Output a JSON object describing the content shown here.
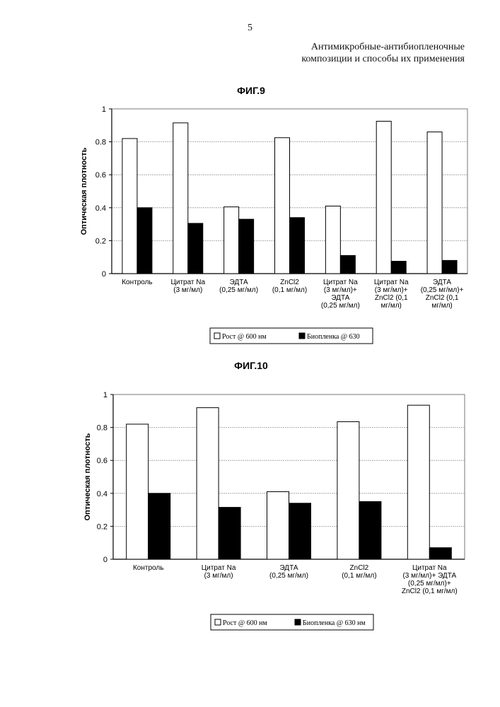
{
  "page": {
    "number": "5",
    "header_line1": "Антимикробные-антибиопленочные",
    "header_line2": "композиции и способы их применения"
  },
  "chart_data": [
    {
      "type": "bar",
      "title": "ФИГ.9",
      "ylabel": "Оптическая плотность",
      "xlabel": "",
      "ylim": [
        0,
        1
      ],
      "yticks": [
        "0",
        "0.2",
        "0.4",
        "0.6",
        "0.8",
        "1"
      ],
      "grid": true,
      "legend_position": "bottom",
      "categories": [
        [
          "Контроль"
        ],
        [
          "Цитрат Na",
          "(3 мг/мл)"
        ],
        [
          "ЭДТА",
          "(0,25 мг/мл)"
        ],
        [
          "ZnCl2",
          "(0,1 мг/мл)"
        ],
        [
          "Цитрат Na",
          "(3 мг/мл)+",
          "ЭДТА",
          "(0,25 мг/мл)"
        ],
        [
          "Цитрат Na",
          "(3 мг/мл)+",
          "ZnCl2 (0,1",
          "мг/мл)"
        ],
        [
          "ЭДТА",
          "(0,25 мг/мл)+",
          "ZnCl2 (0,1",
          "мг/мл)"
        ]
      ],
      "series": [
        {
          "name": "Рост @ 600 нм",
          "color": "#ffffff",
          "values": [
            0.82,
            0.915,
            0.405,
            0.825,
            0.41,
            0.925,
            0.86
          ]
        },
        {
          "name": "Биопленка @ 630",
          "color": "#000000",
          "values": [
            0.4,
            0.305,
            0.33,
            0.34,
            0.11,
            0.075,
            0.08
          ]
        }
      ]
    },
    {
      "type": "bar",
      "title": "ФИГ.10",
      "ylabel": "Оптическая плотность",
      "xlabel": "",
      "ylim": [
        0,
        1
      ],
      "yticks": [
        "0",
        "0.2",
        "0.4",
        "0.6",
        "0.8",
        "1"
      ],
      "grid": true,
      "legend_position": "bottom",
      "categories": [
        [
          "Контроль"
        ],
        [
          "Цитрат Na",
          "(3 мг/мл)"
        ],
        [
          "ЭДТА",
          "(0,25 мг/мл)"
        ],
        [
          "ZnCl2",
          "(0,1 мг/мл)"
        ],
        [
          "Цитрат Na",
          "(3 мг/мл)+ ЭДТА",
          "(0,25 мг/мл)+",
          "ZnCl2 (0,1 мг/мл)"
        ]
      ],
      "series": [
        {
          "name": "Рост @ 600 нм",
          "color": "#ffffff",
          "values": [
            0.82,
            0.92,
            0.41,
            0.835,
            0.935
          ]
        },
        {
          "name": "Биопленка @ 630 нм",
          "color": "#000000",
          "values": [
            0.4,
            0.315,
            0.34,
            0.35,
            0.07
          ]
        }
      ]
    }
  ]
}
